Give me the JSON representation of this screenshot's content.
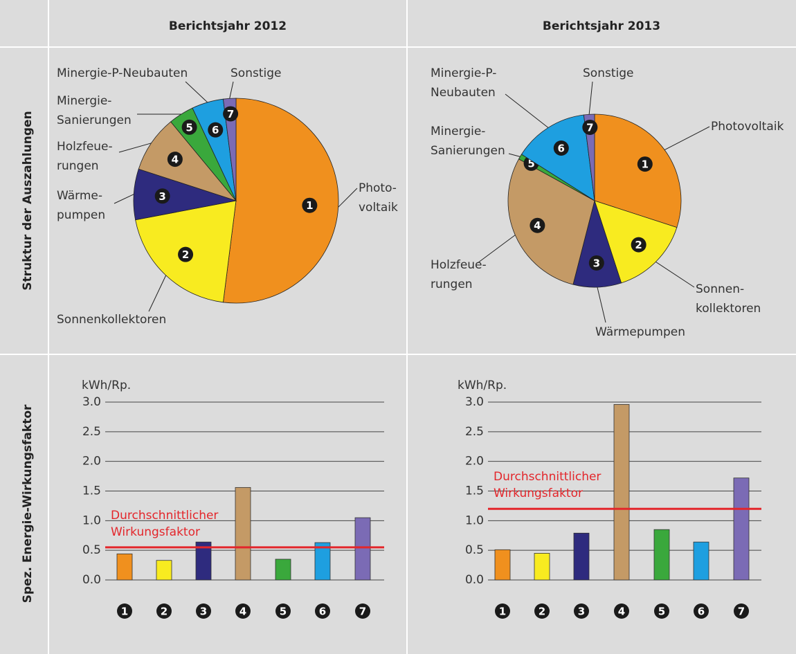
{
  "table": {
    "columns": [
      "Berichtsjahr 2012",
      "Berichtsjahr 2013"
    ],
    "rows": [
      "Struktur der Auszahlungen",
      "Spez. Energie-Wirkungsfaktor"
    ]
  },
  "chart_data": [
    {
      "type": "pie",
      "categories": [
        "1",
        "2",
        "3",
        "4",
        "5",
        "6",
        "7"
      ],
      "labels": [
        [
          "Photo-",
          "voltaik"
        ],
        [
          "Sonnenkollektoren"
        ],
        [
          "Wärme-",
          "pumpen"
        ],
        [
          "Holzfeue-",
          "rungen"
        ],
        [
          "Minergie-",
          "Sanierungen"
        ],
        [
          "Minergie-P-Neubauten"
        ],
        [
          "Sonstige"
        ]
      ],
      "values": [
        52,
        20,
        8,
        9,
        4,
        5,
        2
      ],
      "colors": [
        "#f0901e",
        "#f8eb20",
        "#2e2b7e",
        "#c49a66",
        "#3aa83c",
        "#1e9fe0",
        "#7b6bb5"
      ]
    },
    {
      "type": "pie",
      "categories": [
        "1",
        "2",
        "3",
        "4",
        "5",
        "6",
        "7"
      ],
      "labels": [
        [
          "Photovoltaik"
        ],
        [
          "Sonnen-",
          "kollektoren"
        ],
        [
          "Wärmepumpen"
        ],
        [
          "Holzfeue-",
          "rungen"
        ],
        [
          "Minergie-",
          "Sanierungen"
        ],
        [
          "Minergie-P-",
          "Neubauten"
        ],
        [
          "Sonstige"
        ]
      ],
      "values": [
        30,
        15,
        9,
        29,
        1,
        14,
        2
      ],
      "colors": [
        "#f0901e",
        "#f8eb20",
        "#2e2b7e",
        "#c49a66",
        "#3aa83c",
        "#1e9fe0",
        "#7b6bb5"
      ]
    },
    {
      "type": "bar",
      "y_label": "kWh/Rp.",
      "categories": [
        "1",
        "2",
        "3",
        "4",
        "5",
        "6",
        "7"
      ],
      "values": [
        0.44,
        0.33,
        0.64,
        1.56,
        0.35,
        0.63,
        1.05
      ],
      "colors": [
        "#f0901e",
        "#f8eb20",
        "#2e2b7e",
        "#c49a66",
        "#3aa83c",
        "#1e9fe0",
        "#7b6bb5"
      ],
      "ylim": [
        0,
        3
      ],
      "yticks": [
        {
          "value": 0,
          "label": "0.0"
        },
        0.5,
        {
          "value": 1,
          "label": "1.0"
        },
        1.5,
        {
          "value": 2,
          "label": "2.0"
        },
        2.5,
        {
          "value": 3,
          "label": "3.0"
        }
      ],
      "grid": true,
      "average": {
        "value": 0.55,
        "color": "#e3262b",
        "label": [
          "Durchschnittlicher",
          "Wirkungsfaktor"
        ]
      }
    },
    {
      "type": "bar",
      "y_label": "kWh/Rp.",
      "categories": [
        "1",
        "2",
        "3",
        "4",
        "5",
        "6",
        "7"
      ],
      "values": [
        0.51,
        0.45,
        0.79,
        2.96,
        0.85,
        0.64,
        1.72
      ],
      "colors": [
        "#f0901e",
        "#f8eb20",
        "#2e2b7e",
        "#c49a66",
        "#3aa83c",
        "#1e9fe0",
        "#7b6bb5"
      ],
      "ylim": [
        0,
        3
      ],
      "yticks": [
        {
          "value": 0,
          "label": "0.0"
        },
        0.5,
        {
          "value": 1,
          "label": "1.0"
        },
        1.5,
        {
          "value": 2,
          "label": "2.0"
        },
        2.5,
        {
          "value": 3,
          "label": "3.0"
        }
      ],
      "grid": true,
      "average": {
        "value": 1.2,
        "color": "#e3262b",
        "label": [
          "Durchschnittlicher",
          "Wirkungsfaktor"
        ]
      }
    }
  ]
}
